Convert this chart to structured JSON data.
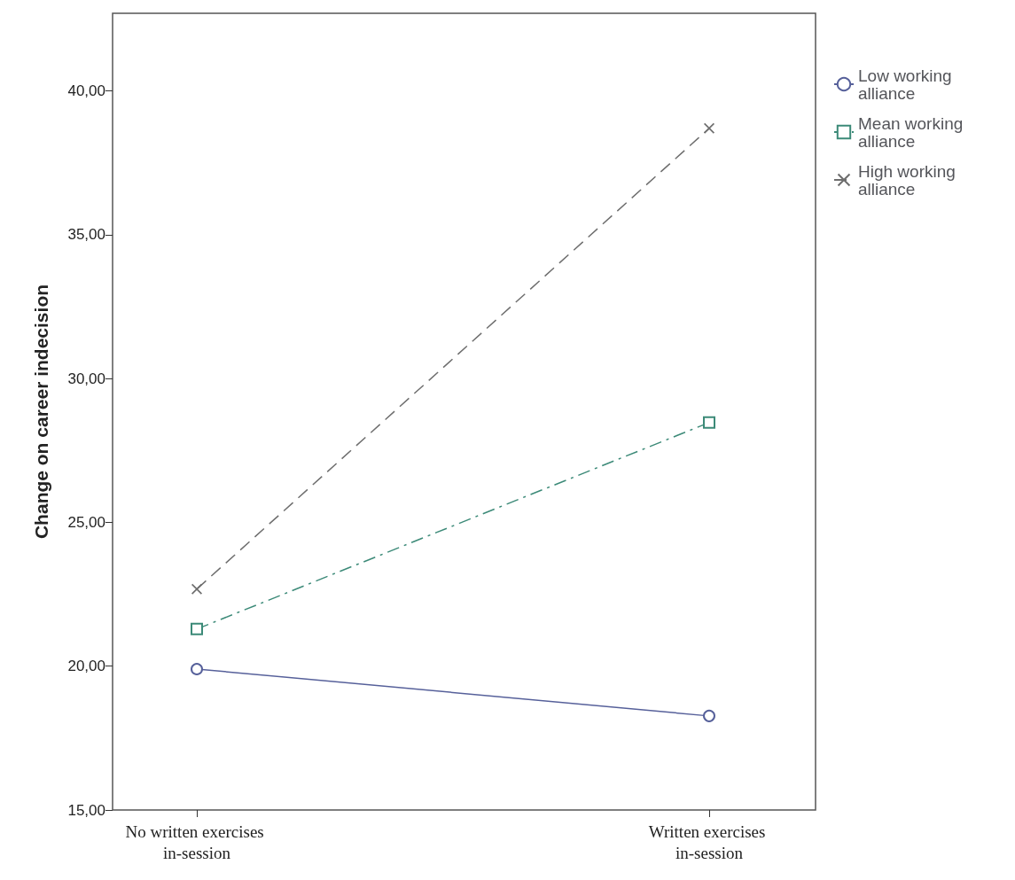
{
  "chart_data": {
    "type": "line",
    "ylabel": "Change on career indecision",
    "categories": [
      "No written exercises in-session",
      "Written exercises in-session"
    ],
    "series": [
      {
        "name": "Low working alliance",
        "color": "#56609a",
        "values": [
          19.9,
          18.27
        ],
        "marker": "circle",
        "line_style": "solid"
      },
      {
        "name": "Mean working alliance",
        "color": "#3c8a78",
        "values": [
          21.29,
          28.47
        ],
        "marker": "square",
        "line_style": "dashdot"
      },
      {
        "name": "High working alliance",
        "color": "#6e6e6e",
        "values": [
          22.68,
          38.7
        ],
        "marker": "cross",
        "line_style": "dashed"
      }
    ],
    "ylim": [
      15,
      42.7
    ],
    "yticks": [
      {
        "value": 15,
        "label": "15,00"
      },
      {
        "value": 20,
        "label": "20,00"
      },
      {
        "value": 25,
        "label": "25,00"
      },
      {
        "value": 30,
        "label": "30,00"
      },
      {
        "value": 35,
        "label": "35,00"
      },
      {
        "value": 40,
        "label": "40,00"
      }
    ],
    "legend": "right",
    "grid": false
  }
}
